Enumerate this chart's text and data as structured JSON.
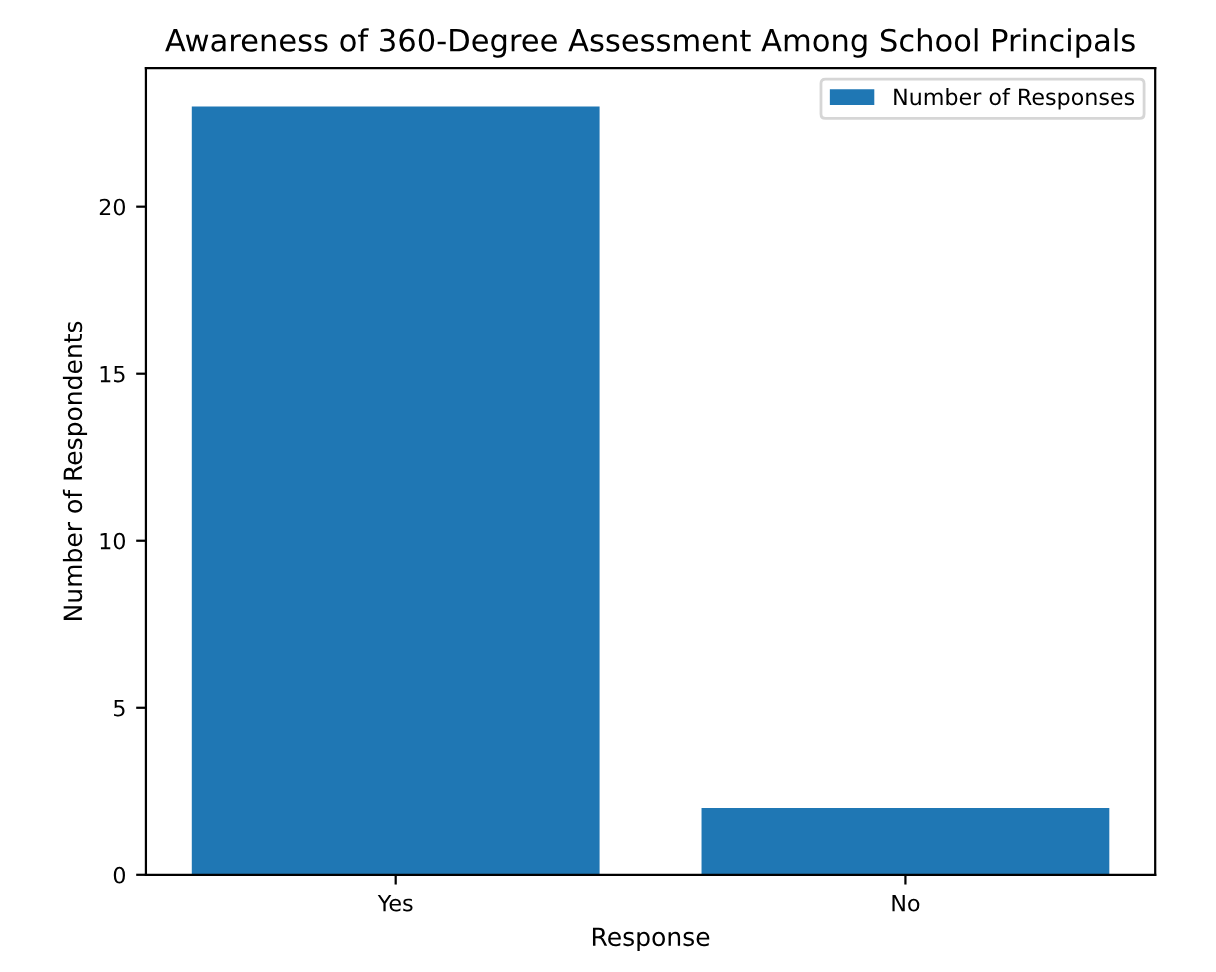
{
  "chart_data": {
    "type": "bar",
    "title": "Awareness of 360-Degree Assessment Among School Principals",
    "xlabel": "Response",
    "ylabel": "Number of Respondents",
    "categories": [
      "Yes",
      "No"
    ],
    "series": [
      {
        "name": "Number of Responses",
        "color": "#1f77b4",
        "values": [
          23,
          2
        ]
      }
    ],
    "ylim": [
      0,
      24.15
    ],
    "yticks": [
      0,
      5,
      10,
      15,
      20
    ],
    "grid": false,
    "legend": "top right"
  }
}
